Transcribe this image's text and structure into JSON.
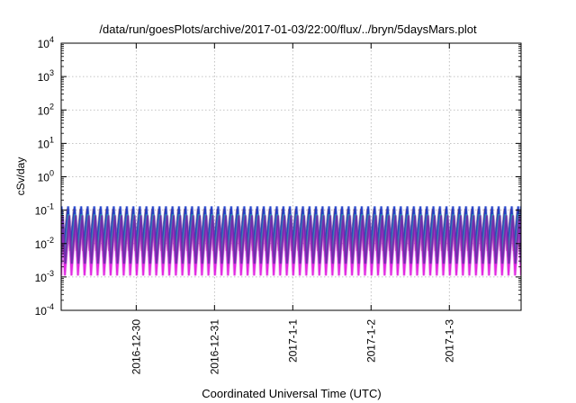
{
  "chart_data": {
    "type": "line",
    "title": "/data/run/goesPlots/archive/2017-01-03/22:00/flux/../bryn/5daysMars.plot",
    "xlabel": "Coordinated Universal Time (UTC)",
    "ylabel": "cSv/day",
    "yscale": "log",
    "ylim": [
      0.0001,
      10000
    ],
    "xlim": [
      "2016-12-29 01:00",
      "2017-01-03 22:00"
    ],
    "xticks": [
      {
        "value": "2016-12-30",
        "label": "2016-12-30"
      },
      {
        "value": "2016-12-31",
        "label": "2016-12-31"
      },
      {
        "value": "2017-01-01",
        "label": "2017-1-1"
      },
      {
        "value": "2017-01-02",
        "label": "2017-1-2"
      },
      {
        "value": "2017-01-03",
        "label": "2017-1-3"
      }
    ],
    "yticks": [
      {
        "exp": "-4"
      },
      {
        "exp": "-3"
      },
      {
        "exp": "-2"
      },
      {
        "exp": "-1"
      },
      {
        "exp": "0"
      },
      {
        "exp": "1"
      },
      {
        "exp": "2"
      },
      {
        "exp": "3"
      },
      {
        "exp": "4"
      }
    ],
    "ytick_base": "10",
    "grid": true,
    "legend": "none",
    "pattern": {
      "shape": "sawtooth",
      "period_hours": 2,
      "phase": 0.2,
      "description_note": "repeating drop-and-recover cycles; lowest/highest bands per series"
    },
    "series": [
      {
        "color": "#8b1a1a",
        "peak": 0.11,
        "trough": 0.006
      },
      {
        "color": "#1f3fc8",
        "peak": 0.13,
        "trough": 0.009
      },
      {
        "color": "#2fa0b0",
        "peak": 0.075,
        "trough": 0.004
      },
      {
        "color": "#e020e0",
        "peak": 0.05,
        "trough": 0.0011
      },
      {
        "color": "#6b2fa8",
        "peak": 0.07,
        "trough": 0.0025
      }
    ]
  }
}
